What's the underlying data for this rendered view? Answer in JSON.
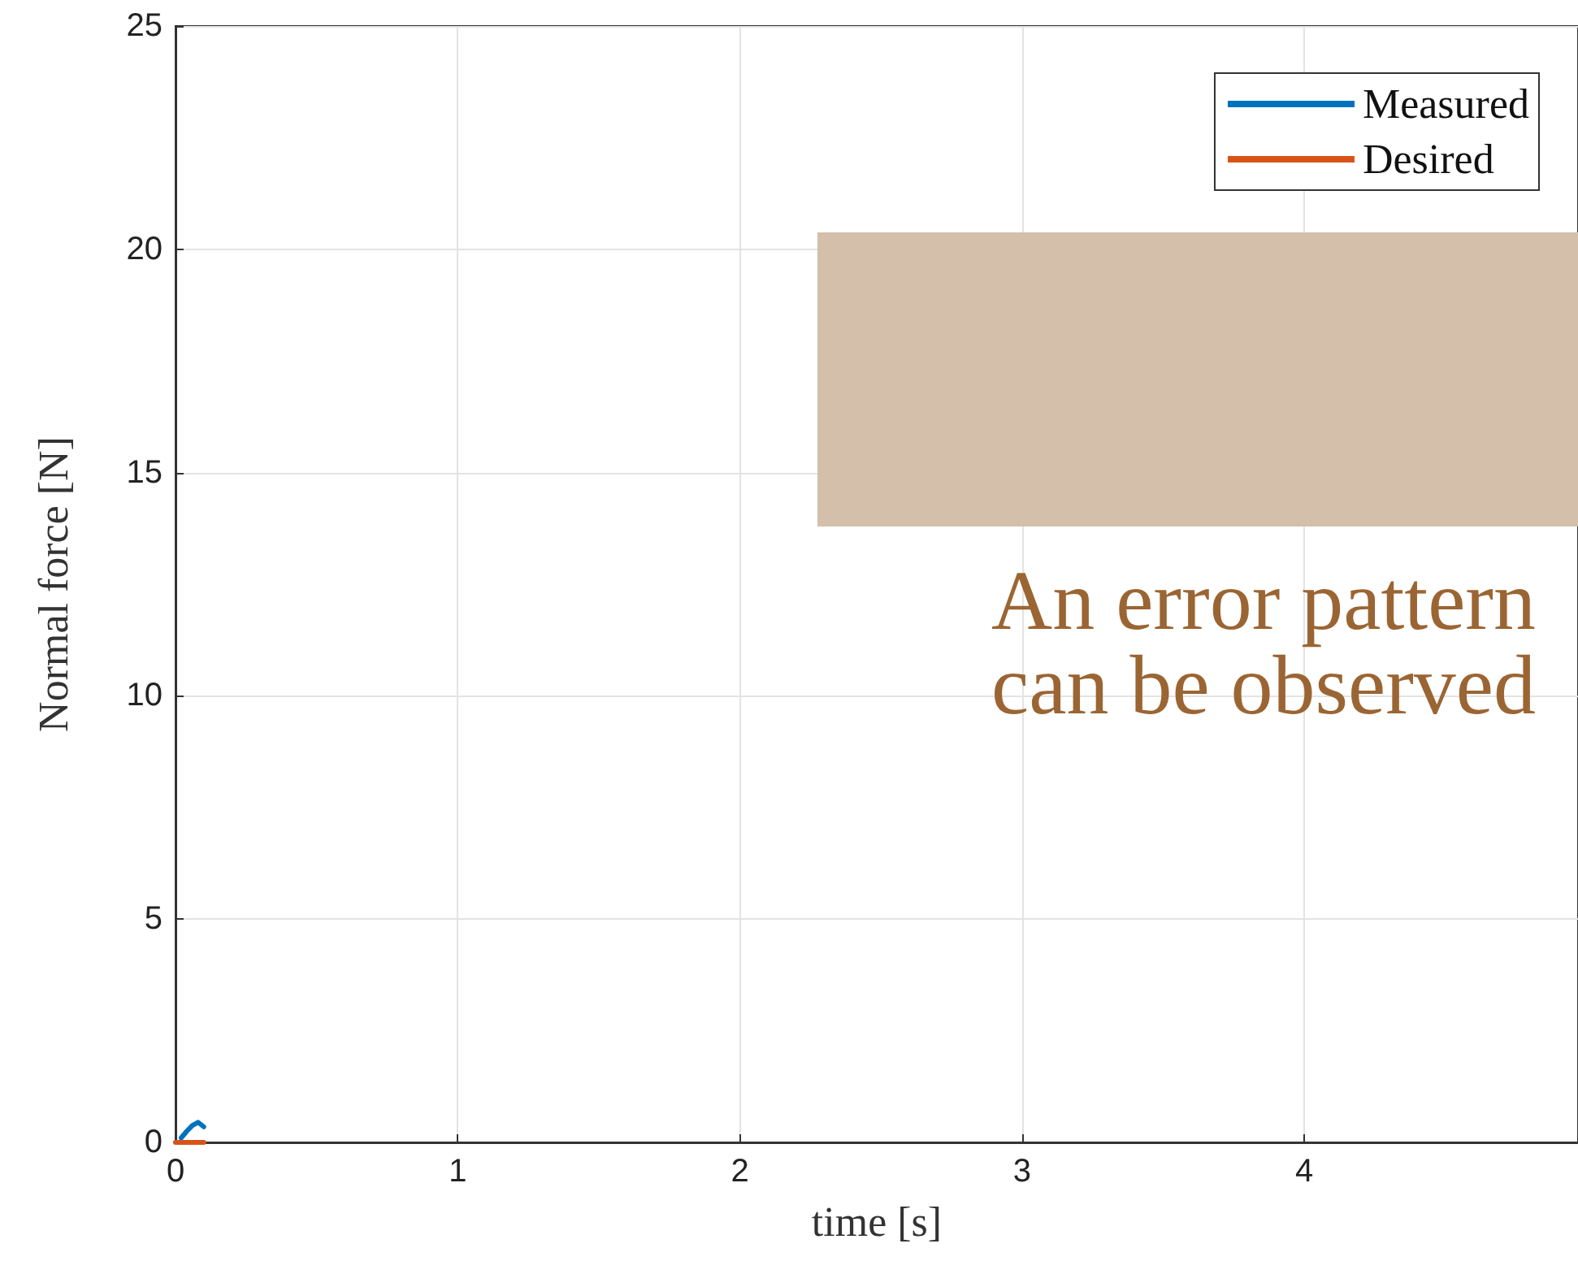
{
  "chart_data": {
    "type": "line",
    "xlabel": "time [s]",
    "ylabel": "Normal force [N]",
    "xlim": [
      0,
      4.97
    ],
    "xticks": [
      0,
      1,
      2,
      3,
      4
    ],
    "ylim": [
      0,
      25
    ],
    "yticks": [
      0,
      5,
      10,
      15,
      20,
      25
    ],
    "grid": true,
    "legend": "top right",
    "line_style": "solid",
    "marker": "none",
    "annotations": [
      "An error pattern\ncan be observed"
    ],
    "series": [
      {
        "name": "Measured",
        "color": "#0072bd",
        "x": [
          0.02,
          0.04,
          0.06,
          0.08,
          0.1
        ],
        "values": [
          0.1,
          0.25,
          0.38,
          0.45,
          0.35
        ]
      },
      {
        "name": "Desired",
        "color": "#d95319",
        "x": [
          0,
          0.1
        ],
        "values": [
          0,
          0
        ]
      }
    ]
  }
}
